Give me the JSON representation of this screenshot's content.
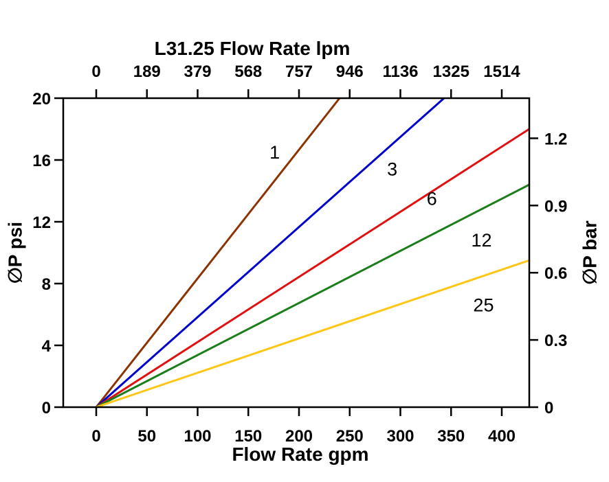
{
  "chart_data": {
    "type": "line",
    "title": "L31.25 Flow Rate lpm",
    "xlabel_bottom": "Flow Rate gpm",
    "ylabel_left": "∅P psi",
    "ylabel_right": "∅P bar",
    "x_axis_bottom": {
      "unit": "gpm",
      "ticks": [
        0,
        50,
        100,
        150,
        200,
        250,
        300,
        350,
        400
      ]
    },
    "x_axis_top": {
      "unit": "lpm",
      "tick_labels": [
        "0",
        "189",
        "379",
        "568",
        "757",
        "946",
        "1136",
        "1325",
        "1514"
      ]
    },
    "y_axis_left": {
      "unit": "psi",
      "ticks": [
        0,
        4,
        8,
        12,
        16,
        20
      ],
      "range": [
        0,
        20
      ]
    },
    "y_axis_right": {
      "unit": "bar",
      "tick_labels": [
        "0",
        "0.3",
        "0.6",
        "0.9",
        "1.2"
      ]
    },
    "psi_per_bar": 14.5038,
    "grid": false,
    "legend": "inline-labels",
    "series": [
      {
        "name": "1",
        "color": "#8B3303",
        "points": [
          [
            0,
            0
          ],
          [
            240,
            20
          ]
        ]
      },
      {
        "name": "3",
        "color": "#0000CD",
        "points": [
          [
            0,
            0
          ],
          [
            343,
            20
          ]
        ]
      },
      {
        "name": "6",
        "color": "#E01010",
        "points": [
          [
            0,
            0
          ],
          [
            427,
            18
          ]
        ]
      },
      {
        "name": "12",
        "color": "#1B7E1B",
        "points": [
          [
            0,
            0
          ],
          [
            427,
            14.4
          ]
        ]
      },
      {
        "name": "25",
        "color": "#FFC613",
        "points": [
          [
            0,
            0
          ],
          [
            427,
            9.5
          ]
        ]
      }
    ],
    "series_labels": [
      {
        "text": "1",
        "gpm": 176,
        "psi": 16.1
      },
      {
        "text": "3",
        "gpm": 292,
        "psi": 15.0
      },
      {
        "text": "6",
        "gpm": 331,
        "psi": 13.1
      },
      {
        "text": "12",
        "gpm": 380,
        "psi": 10.4
      },
      {
        "text": "25",
        "gpm": 382,
        "psi": 6.2
      }
    ]
  }
}
